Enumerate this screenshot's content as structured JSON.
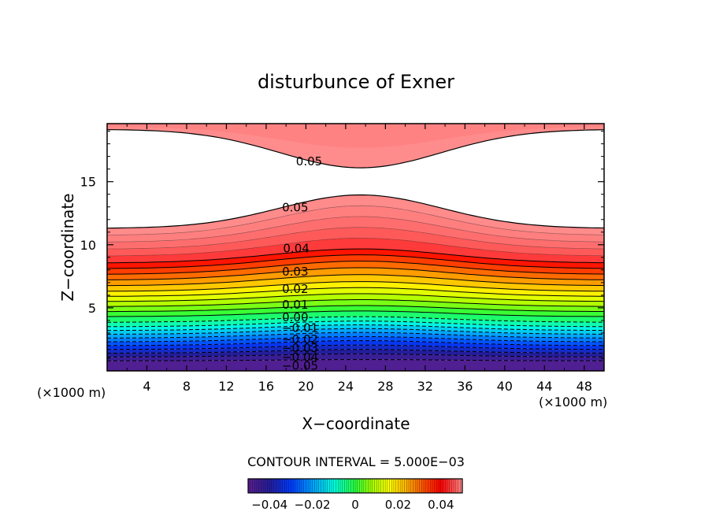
{
  "chart_data": {
    "type": "contour",
    "title": "disturbunce of Exner",
    "xlabel": "X−coordinate",
    "ylabel": "Z−coordinate",
    "x_unit_label": "(×1000 m)",
    "y_unit_label": "(×1000 m)",
    "xlim": [
      0,
      50
    ],
    "ylim": [
      0,
      19.6
    ],
    "x_ticks": [
      4,
      8,
      12,
      16,
      20,
      24,
      28,
      32,
      36,
      40,
      44,
      48
    ],
    "y_ticks": [
      5,
      10,
      15
    ],
    "x_tick_labels": [
      "4",
      "8",
      "12",
      "16",
      "20",
      "24",
      "28",
      "32",
      "36",
      "40",
      "44",
      "48"
    ],
    "y_tick_labels": [
      "5",
      "10",
      "15"
    ],
    "contour_interval_text": "CONTOUR INTERVAL = 5.000E−03",
    "contour_interval": 0.005,
    "levels_min": -0.05,
    "levels_max": 0.05,
    "level_heights": [
      0.8,
      1.1,
      1.4,
      1.7,
      2.0,
      2.3,
      2.6,
      2.9,
      3.2,
      3.5,
      3.85,
      4.3,
      4.7,
      5.1,
      5.5,
      5.9,
      6.3,
      6.75,
      7.2,
      7.65,
      8.1,
      8.55
    ],
    "peak_x": 25.5,
    "bump_amplitude": [
      0.1,
      0.25,
      0.3,
      0.35,
      0.4,
      0.42,
      0.45,
      0.45,
      0.45,
      0.45,
      0.45,
      0.45,
      0.48,
      0.55,
      0.62,
      0.7,
      0.78,
      0.88,
      0.98,
      1.05,
      1.1,
      1.12
    ],
    "upper_layer": {
      "edge_z": 11.3,
      "peak_z": 13.95,
      "near_label_z": 12.95
    },
    "top_layer": {
      "edge_z": 19.15,
      "trough_z": 16.1
    },
    "contour_labels": [
      {
        "text": "0.05",
        "x": 19.0,
        "z": 16.6
      },
      {
        "text": "0.05",
        "x": 17.6,
        "z": 12.95
      },
      {
        "text": "0.04",
        "x": 17.7,
        "z": 9.7
      },
      {
        "text": "0.03",
        "x": 17.6,
        "z": 7.85
      },
      {
        "text": "0.02",
        "x": 17.6,
        "z": 6.5
      },
      {
        "text": "0.01",
        "x": 17.6,
        "z": 5.25
      },
      {
        "text": "0.00",
        "x": 17.6,
        "z": 4.25
      },
      {
        "text": "−0.01",
        "x": 17.6,
        "z": 3.4
      },
      {
        "text": "−0.02",
        "x": 17.6,
        "z": 2.5
      },
      {
        "text": "−0.03",
        "x": 17.6,
        "z": 1.8
      },
      {
        "text": "−0.04",
        "x": 17.6,
        "z": 1.1
      },
      {
        "text": "−0.05",
        "x": 17.6,
        "z": 0.4
      }
    ],
    "colorbar": {
      "range": [
        -0.05,
        0.05
      ],
      "ticks": [
        -0.04,
        -0.02,
        0,
        0.02,
        0.04
      ],
      "tick_labels": [
        "−0.04",
        "−0.02",
        "0",
        "0.02",
        "0.04"
      ]
    }
  }
}
